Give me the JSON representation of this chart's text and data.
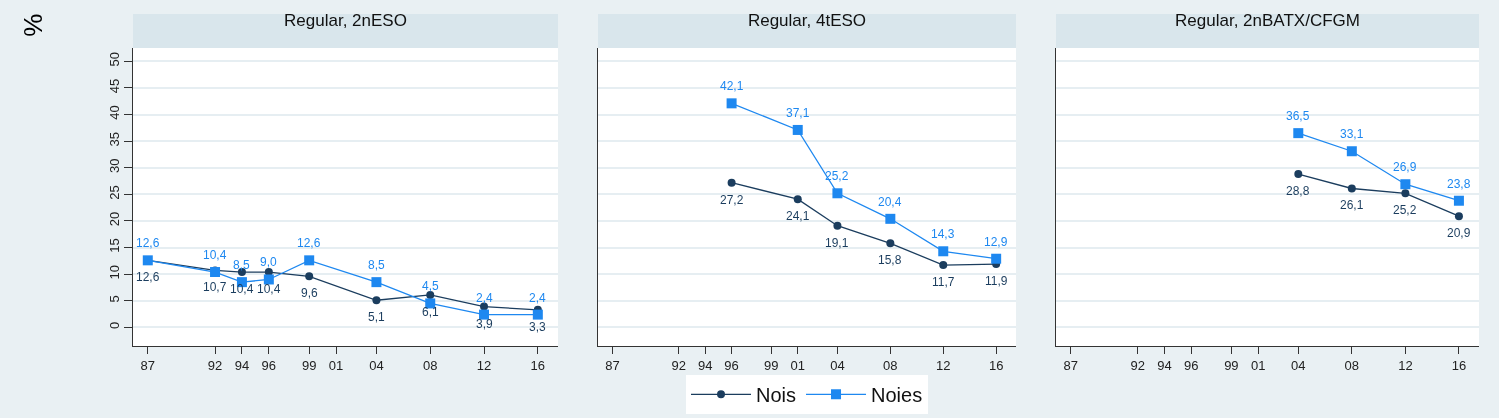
{
  "chart_data": [
    {
      "type": "line",
      "title": "Regular, 2nESO",
      "ylabel": "%",
      "x": [
        1987,
        1992,
        1994,
        1996,
        1999,
        2004,
        2008,
        2012,
        2016
      ],
      "xlim": [
        1985.9,
        2017.5
      ],
      "xticks": [
        {
          "value": 1987,
          "label": "87"
        },
        {
          "value": 1992,
          "label": "92"
        },
        {
          "value": 1994,
          "label": "94"
        },
        {
          "value": 1996,
          "label": "96"
        },
        {
          "value": 1999,
          "label": "99"
        },
        {
          "value": 2001,
          "label": "01"
        },
        {
          "value": 2004,
          "label": "04"
        },
        {
          "value": 2008,
          "label": "08"
        },
        {
          "value": 2012,
          "label": "12"
        },
        {
          "value": 2016,
          "label": "16"
        }
      ],
      "ylim": [
        -3.5,
        52.5
      ],
      "yticks": [
        0,
        5,
        10,
        15,
        20,
        25,
        30,
        35,
        40,
        45,
        50
      ],
      "grid": "y",
      "series": [
        {
          "color": "#1b3d5e",
          "marker": "circle",
          "values": [
            12.6,
            10.7,
            10.4,
            10.4,
            9.6,
            5.1,
            6.1,
            3.9,
            3.3
          ],
          "value_labels": [
            "12,6",
            "10,7",
            "10,4",
            "10,4",
            "9,6",
            "5,1",
            "6,1",
            "3,9",
            "3,3"
          ]
        },
        {
          "color": "#1e88f0",
          "marker": "square",
          "values": [
            12.6,
            10.4,
            8.5,
            9.0,
            12.6,
            8.5,
            4.5,
            2.4,
            2.4
          ],
          "value_labels": [
            "12,6",
            "10,4",
            "8,5",
            "9,0",
            "12,6",
            "8,5",
            "4,5",
            "2,4",
            "2,4"
          ]
        }
      ]
    },
    {
      "type": "line",
      "title": "Regular, 4tESO",
      "x": [
        1996,
        2001,
        2004,
        2008,
        2012,
        2016
      ],
      "xlim": [
        1985.9,
        2017.5
      ],
      "xticks": [
        {
          "value": 1987,
          "label": "87"
        },
        {
          "value": 1992,
          "label": "92"
        },
        {
          "value": 1994,
          "label": "94"
        },
        {
          "value": 1996,
          "label": "96"
        },
        {
          "value": 1999,
          "label": "99"
        },
        {
          "value": 2001,
          "label": "01"
        },
        {
          "value": 2004,
          "label": "04"
        },
        {
          "value": 2008,
          "label": "08"
        },
        {
          "value": 2012,
          "label": "12"
        },
        {
          "value": 2016,
          "label": "16"
        }
      ],
      "ylim": [
        -3.5,
        52.5
      ],
      "yticks": [
        0,
        5,
        10,
        15,
        20,
        25,
        30,
        35,
        40,
        45,
        50
      ],
      "tick_labels": "x",
      "grid": "y",
      "legend": "bottom",
      "series": [
        {
          "name": "Nois",
          "color": "#1b3d5e",
          "marker": "circle",
          "values": [
            27.2,
            24.1,
            19.1,
            15.8,
            11.7,
            11.9
          ],
          "value_labels": [
            "27,2",
            "24,1",
            "19,1",
            "15,8",
            "11,7",
            "11,9"
          ]
        },
        {
          "name": "Noies",
          "color": "#1e88f0",
          "marker": "square",
          "values": [
            42.1,
            37.1,
            25.2,
            20.4,
            14.3,
            12.9
          ],
          "value_labels": [
            "42,1",
            "37,1",
            "25,2",
            "20,4",
            "14,3",
            "12,9"
          ]
        }
      ]
    },
    {
      "type": "line",
      "title": "Regular, 2nBATX/CFGM",
      "x": [
        2004,
        2008,
        2012,
        2016
      ],
      "xlim": [
        1985.9,
        2017.5
      ],
      "xticks": [
        {
          "value": 1987,
          "label": "87"
        },
        {
          "value": 1992,
          "label": "92"
        },
        {
          "value": 1994,
          "label": "94"
        },
        {
          "value": 1996,
          "label": "96"
        },
        {
          "value": 1999,
          "label": "99"
        },
        {
          "value": 2001,
          "label": "01"
        },
        {
          "value": 2004,
          "label": "04"
        },
        {
          "value": 2008,
          "label": "08"
        },
        {
          "value": 2012,
          "label": "12"
        },
        {
          "value": 2016,
          "label": "16"
        }
      ],
      "ylim": [
        -3.5,
        52.5
      ],
      "yticks": [
        0,
        5,
        10,
        15,
        20,
        25,
        30,
        35,
        40,
        45,
        50
      ],
      "tick_labels": "x",
      "grid": "y",
      "series": [
        {
          "color": "#1b3d5e",
          "marker": "circle",
          "values": [
            28.8,
            26.1,
            25.2,
            20.9
          ],
          "value_labels": [
            "28,8",
            "26,1",
            "25,2",
            "20,9"
          ]
        },
        {
          "color": "#1e88f0",
          "marker": "square",
          "values": [
            36.5,
            33.1,
            26.9,
            23.8
          ],
          "value_labels": [
            "36,5",
            "33,1",
            "26,9",
            "23,8"
          ]
        }
      ]
    }
  ]
}
